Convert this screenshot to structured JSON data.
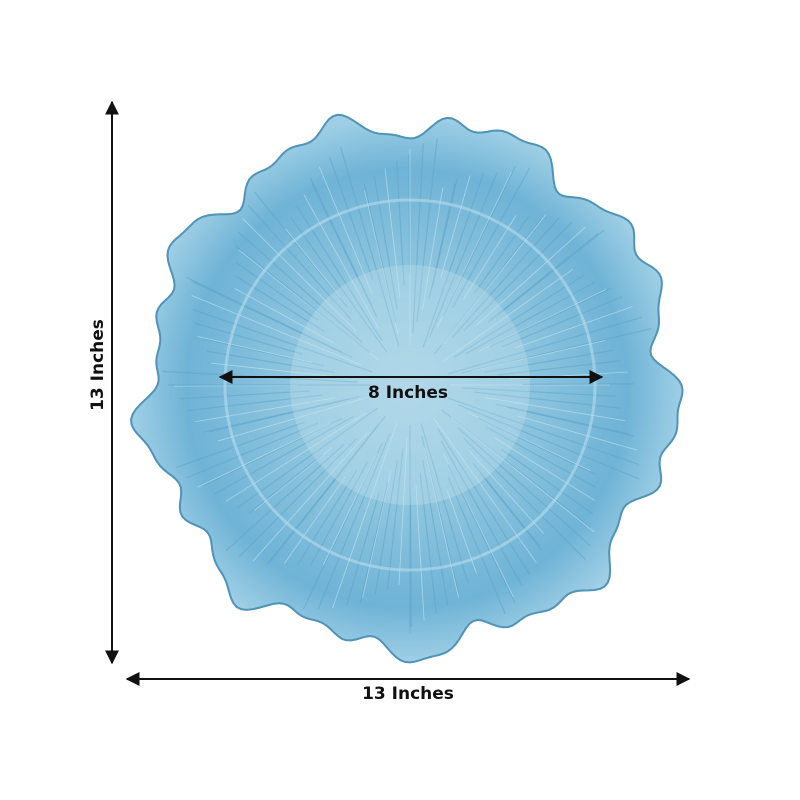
{
  "dimensions": {
    "height": "13 Inches",
    "width": "13 Inches",
    "inner_diameter": "8 Inches"
  }
}
